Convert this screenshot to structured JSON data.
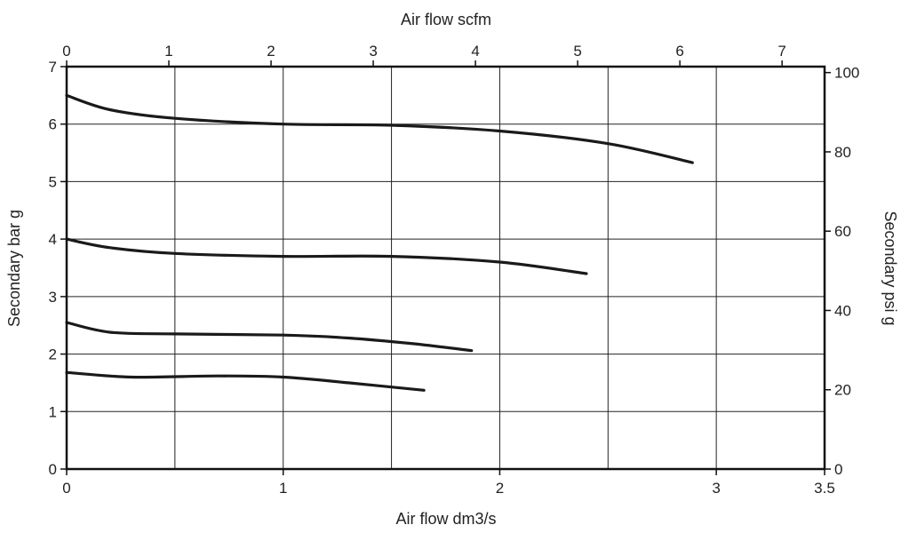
{
  "chart_data": {
    "type": "line",
    "xlabel": "Air flow dm3/s",
    "x2label": "Air flow scfm",
    "ylabel": "Secondary bar g",
    "y2label": "Secondary psi g",
    "xlim": [
      0,
      3.5
    ],
    "ylim": [
      0,
      7
    ],
    "x2lim": [
      0,
      7.416
    ],
    "y2lim": [
      0,
      101.5
    ],
    "x_ticks": [
      "0",
      "1",
      "2",
      "3",
      "3.5"
    ],
    "x_tick_values": [
      0,
      1,
      2,
      3,
      3.5
    ],
    "y_ticks": [
      "0",
      "1",
      "2",
      "3",
      "4",
      "5",
      "6",
      "7"
    ],
    "y_tick_values": [
      0,
      1,
      2,
      3,
      4,
      5,
      6,
      7
    ],
    "x2_ticks": [
      "0",
      "1",
      "2",
      "3",
      "4",
      "5",
      "6",
      "7"
    ],
    "x2_tick_values": [
      0,
      1,
      2,
      3,
      4,
      5,
      6,
      7
    ],
    "y2_ticks": [
      "0",
      "20",
      "40",
      "60",
      "80",
      "100"
    ],
    "y2_tick_values": [
      0,
      20,
      40,
      60,
      80,
      100
    ],
    "grid": true,
    "grid_x": [
      0.5,
      1,
      1.5,
      2,
      2.5,
      3
    ],
    "grid_y": [
      1,
      2,
      3,
      4,
      5,
      6
    ],
    "series": [
      {
        "x": [
          0,
          0.2,
          0.5,
          1.0,
          1.5,
          2.0,
          2.5,
          2.89
        ],
        "y": [
          6.5,
          6.25,
          6.1,
          6.0,
          5.98,
          5.88,
          5.66,
          5.33
        ]
      },
      {
        "x": [
          0,
          0.2,
          0.5,
          1.0,
          1.5,
          2.0,
          2.4
        ],
        "y": [
          4.0,
          3.85,
          3.75,
          3.7,
          3.7,
          3.6,
          3.4
        ]
      },
      {
        "x": [
          0,
          0.2,
          0.5,
          1.0,
          1.3,
          1.6,
          1.87
        ],
        "y": [
          2.55,
          2.38,
          2.35,
          2.33,
          2.28,
          2.18,
          2.06
        ]
      },
      {
        "x": [
          0,
          0.3,
          0.7,
          1.0,
          1.3,
          1.65
        ],
        "y": [
          1.68,
          1.6,
          1.62,
          1.6,
          1.5,
          1.37
        ]
      }
    ]
  }
}
